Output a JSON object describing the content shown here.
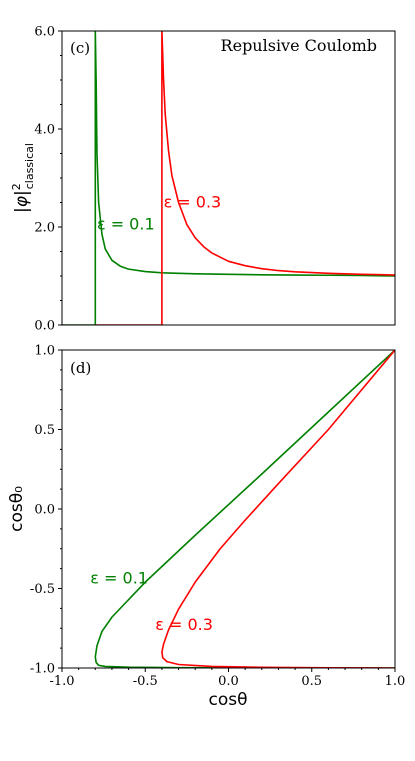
{
  "chart_data": [
    {
      "type": "line",
      "panel_label": "(c)",
      "title": "Repulsive Coulomb",
      "xlim": [
        -1.0,
        1.0
      ],
      "ylim": [
        0.0,
        6.0
      ],
      "ylabel_main": "|φ|",
      "ylabel_sup": "2",
      "ylabel_sub": "classical",
      "yticks": [
        0.0,
        2.0,
        4.0,
        6.0
      ],
      "ytick_labels": [
        "0.0",
        "2.0",
        "4.0",
        "6.0"
      ],
      "series": [
        {
          "name": "ε = 0.1",
          "color": "#008000",
          "threshold": -0.8,
          "points": [
            [
              -1.0,
              0.0
            ],
            [
              -0.8,
              0.0
            ],
            [
              -0.8,
              6.0
            ],
            [
              -0.795,
              5.0
            ],
            [
              -0.79,
              3.5
            ],
            [
              -0.78,
              2.5
            ],
            [
              -0.76,
              1.85
            ],
            [
              -0.74,
              1.55
            ],
            [
              -0.7,
              1.32
            ],
            [
              -0.65,
              1.2
            ],
            [
              -0.6,
              1.14
            ],
            [
              -0.5,
              1.09
            ],
            [
              -0.4,
              1.065
            ],
            [
              -0.2,
              1.045
            ],
            [
              0.0,
              1.035
            ],
            [
              0.2,
              1.025
            ],
            [
              0.4,
              1.02
            ],
            [
              0.6,
              1.015
            ],
            [
              0.8,
              1.01
            ],
            [
              1.0,
              1.0
            ]
          ]
        },
        {
          "name": "ε = 0.3",
          "color": "#ff0000",
          "threshold": -0.4,
          "points": [
            [
              -0.8,
              0.0
            ],
            [
              -0.4,
              0.0
            ],
            [
              -0.4,
              1.05
            ],
            [
              -0.4,
              6.0
            ],
            [
              -0.39,
              5.0
            ],
            [
              -0.38,
              4.3
            ],
            [
              -0.36,
              3.55
            ],
            [
              -0.34,
              3.05
            ],
            [
              -0.3,
              2.5
            ],
            [
              -0.25,
              2.05
            ],
            [
              -0.2,
              1.78
            ],
            [
              -0.15,
              1.6
            ],
            [
              -0.1,
              1.47
            ],
            [
              0.0,
              1.3
            ],
            [
              0.1,
              1.21
            ],
            [
              0.2,
              1.15
            ],
            [
              0.3,
              1.11
            ],
            [
              0.4,
              1.085
            ],
            [
              0.6,
              1.055
            ],
            [
              0.8,
              1.035
            ],
            [
              1.0,
              1.02
            ]
          ]
        }
      ],
      "annotations": [
        {
          "text": "ε = 0.1",
          "color": "#008000",
          "x": -0.79,
          "y": 1.95
        },
        {
          "text": "ε = 0.3",
          "color": "#ff0000",
          "x": -0.39,
          "y": 2.4
        }
      ]
    },
    {
      "type": "line",
      "panel_label": "(d)",
      "xlim": [
        -1.0,
        1.0
      ],
      "ylim": [
        -1.0,
        1.0
      ],
      "xlabel": "cosθ",
      "ylabel": "cosθ₀",
      "xticks": [
        -1.0,
        -0.5,
        0.0,
        0.5,
        1.0
      ],
      "xtick_labels": [
        "-1.0",
        "-0.5",
        "0.0",
        "0.5",
        "1.0"
      ],
      "yticks": [
        -1.0,
        -0.5,
        0.0,
        0.5,
        1.0
      ],
      "ytick_labels": [
        "-1.0",
        "-0.5",
        "0.0",
        "0.5",
        "1.0"
      ],
      "series": [
        {
          "name": "ε = 0.1",
          "color": "#008000",
          "points": [
            [
              1.0,
              1.0
            ],
            [
              0.6,
              0.61
            ],
            [
              0.2,
              0.22
            ],
            [
              -0.2,
              -0.165
            ],
            [
              -0.5,
              -0.46
            ],
            [
              -0.7,
              -0.68
            ],
            [
              -0.76,
              -0.77
            ],
            [
              -0.79,
              -0.86
            ],
            [
              -0.8,
              -0.93
            ],
            [
              -0.795,
              -0.965
            ],
            [
              -0.78,
              -0.983
            ],
            [
              -0.74,
              -0.99
            ],
            [
              -0.6,
              -0.995
            ],
            [
              -0.3,
              -0.998
            ],
            [
              0.0,
              -0.999
            ],
            [
              0.5,
              -1.0
            ],
            [
              1.0,
              -1.0
            ]
          ]
        },
        {
          "name": "ε = 0.3",
          "color": "#ff0000",
          "points": [
            [
              1.0,
              1.0
            ],
            [
              0.6,
              0.5
            ],
            [
              0.3,
              0.16
            ],
            [
              0.1,
              -0.07
            ],
            [
              -0.05,
              -0.25
            ],
            [
              -0.2,
              -0.46
            ],
            [
              -0.3,
              -0.63
            ],
            [
              -0.36,
              -0.76
            ],
            [
              -0.39,
              -0.85
            ],
            [
              -0.4,
              -0.9
            ],
            [
              -0.395,
              -0.935
            ],
            [
              -0.37,
              -0.96
            ],
            [
              -0.3,
              -0.978
            ],
            [
              -0.1,
              -0.99
            ],
            [
              0.2,
              -0.996
            ],
            [
              0.6,
              -0.999
            ],
            [
              1.0,
              -1.0
            ]
          ]
        }
      ],
      "annotations": [
        {
          "text": "ε = 0.1",
          "color": "#008000",
          "x": -0.83,
          "y": -0.47
        },
        {
          "text": "ε = 0.3",
          "color": "#ff0000",
          "x": -0.44,
          "y": -0.76
        }
      ]
    }
  ]
}
